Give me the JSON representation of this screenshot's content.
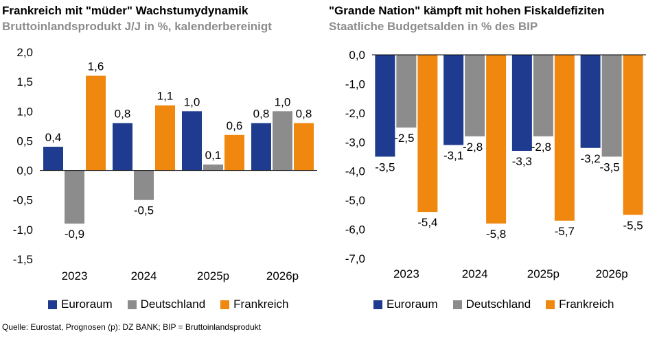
{
  "colors": {
    "euroraum": "#1f3b8f",
    "deutschland": "#8c8c8c",
    "frankreich": "#f0870f"
  },
  "source": "Quelle: Eurostat, Prognosen (p): DZ BANK; BIP = Bruttoinlandsprodukt",
  "chart_data": [
    {
      "type": "bar",
      "title": "Frankreich mit \"müder\" Wachstumydynamik",
      "subtitle": "Bruttoinlandsprodukt J/J in %, kalenderbereinigt",
      "categories": [
        "2023",
        "2024",
        "2025p",
        "2026p"
      ],
      "series": [
        {
          "name": "Euroraum",
          "values": [
            0.4,
            0.8,
            1.0,
            0.8
          ],
          "labels": [
            "0,4",
            "0,8",
            "1,0",
            "0,8"
          ]
        },
        {
          "name": "Deutschland",
          "values": [
            -0.9,
            -0.5,
            0.1,
            1.0
          ],
          "labels": [
            "-0,9",
            "-0,5",
            "0,1",
            "1,0"
          ]
        },
        {
          "name": "Frankreich",
          "values": [
            1.6,
            1.1,
            0.6,
            0.8
          ],
          "labels": [
            "1,6",
            "1,1",
            "0,6",
            "0,8"
          ]
        }
      ],
      "ylim": [
        -1.5,
        2.0
      ],
      "yticks": [
        2.0,
        1.5,
        1.0,
        0.5,
        0.0,
        -0.5,
        -1.0,
        -1.5
      ],
      "yticklabels": [
        "2,0",
        "1,5",
        "1,0",
        "0,5",
        "0,0",
        "-0,5",
        "-1,0",
        "-1,5"
      ],
      "xlabel": "",
      "ylabel": "",
      "grid": false,
      "legend": "bottom"
    },
    {
      "type": "bar",
      "title": "\"Grande Nation\" kämpft mit hohen Fiskaldefiziten",
      "subtitle": "Staatliche Budgetsalden in % des BIP",
      "categories": [
        "2023",
        "2024",
        "2025p",
        "2026p"
      ],
      "series": [
        {
          "name": "Euroraum",
          "values": [
            -3.5,
            -3.1,
            -3.3,
            -3.2
          ],
          "labels": [
            "-3,5",
            "-3,1",
            "-3,3",
            "-3,2"
          ]
        },
        {
          "name": "Deutschland",
          "values": [
            -2.5,
            -2.8,
            -2.8,
            -3.5
          ],
          "labels": [
            "-2,5",
            "-2,8",
            "-2,8",
            "-3,5"
          ]
        },
        {
          "name": "Frankreich",
          "values": [
            -5.4,
            -5.8,
            -5.7,
            -5.5
          ],
          "labels": [
            "-5,4",
            "-5,8",
            "-5,7",
            "-5,5"
          ]
        }
      ],
      "ylim": [
        -7.0,
        0.0
      ],
      "yticks": [
        0,
        -1,
        -2,
        -3,
        -4,
        -5,
        -6,
        -7
      ],
      "yticklabels": [
        "0,0",
        "-1,0",
        "-2,0",
        "-3,0",
        "-4,0",
        "-5,0",
        "-6,0",
        "-7,0"
      ],
      "xlabel": "",
      "ylabel": "",
      "grid": false,
      "legend": "bottom"
    }
  ]
}
